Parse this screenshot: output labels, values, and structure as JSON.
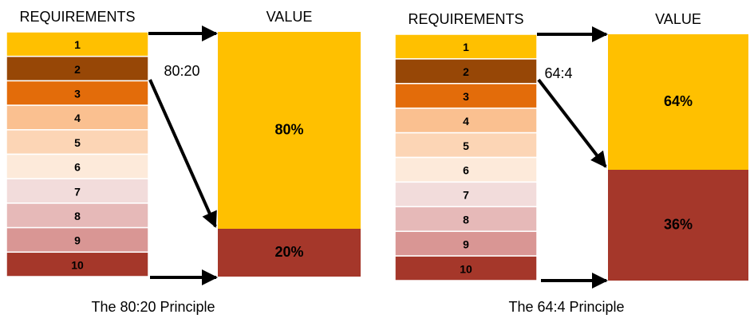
{
  "panels": [
    {
      "header_left": "REQUIREMENTS",
      "header_right": "VALUE",
      "ratio": "80:20",
      "rows": [
        {
          "label": "1",
          "color": "#ffc000"
        },
        {
          "label": "2",
          "color": "#974706"
        },
        {
          "label": "3",
          "color": "#e36c0a"
        },
        {
          "label": "4",
          "color": "#fac090"
        },
        {
          "label": "5",
          "color": "#fcd5b5"
        },
        {
          "label": "6",
          "color": "#fdeada"
        },
        {
          "label": "7",
          "color": "#f2dcdb"
        },
        {
          "label": "8",
          "color": "#e6b9b8"
        },
        {
          "label": "9",
          "color": "#d99694"
        },
        {
          "label": "10",
          "color": "#a5372a"
        }
      ],
      "value_top": {
        "label": "80%",
        "color": "#ffc000"
      },
      "value_bottom": {
        "label": "20%",
        "color": "#a5372a"
      },
      "caption": "The 80:20 Principle"
    },
    {
      "header_left": "REQUIREMENTS",
      "header_right": "VALUE",
      "ratio": "64:4",
      "rows": [
        {
          "label": "1",
          "color": "#ffc000"
        },
        {
          "label": "2",
          "color": "#974706"
        },
        {
          "label": "3",
          "color": "#e36c0a"
        },
        {
          "label": "4",
          "color": "#fac090"
        },
        {
          "label": "5",
          "color": "#fcd5b5"
        },
        {
          "label": "6",
          "color": "#fdeada"
        },
        {
          "label": "7",
          "color": "#f2dcdb"
        },
        {
          "label": "8",
          "color": "#e6b9b8"
        },
        {
          "label": "9",
          "color": "#d99694"
        },
        {
          "label": "10",
          "color": "#a5372a"
        }
      ],
      "value_top": {
        "label": "64%",
        "color": "#ffc000"
      },
      "value_bottom": {
        "label": "36%",
        "color": "#a5372a"
      },
      "caption": "The 64:4 Principle"
    }
  ]
}
